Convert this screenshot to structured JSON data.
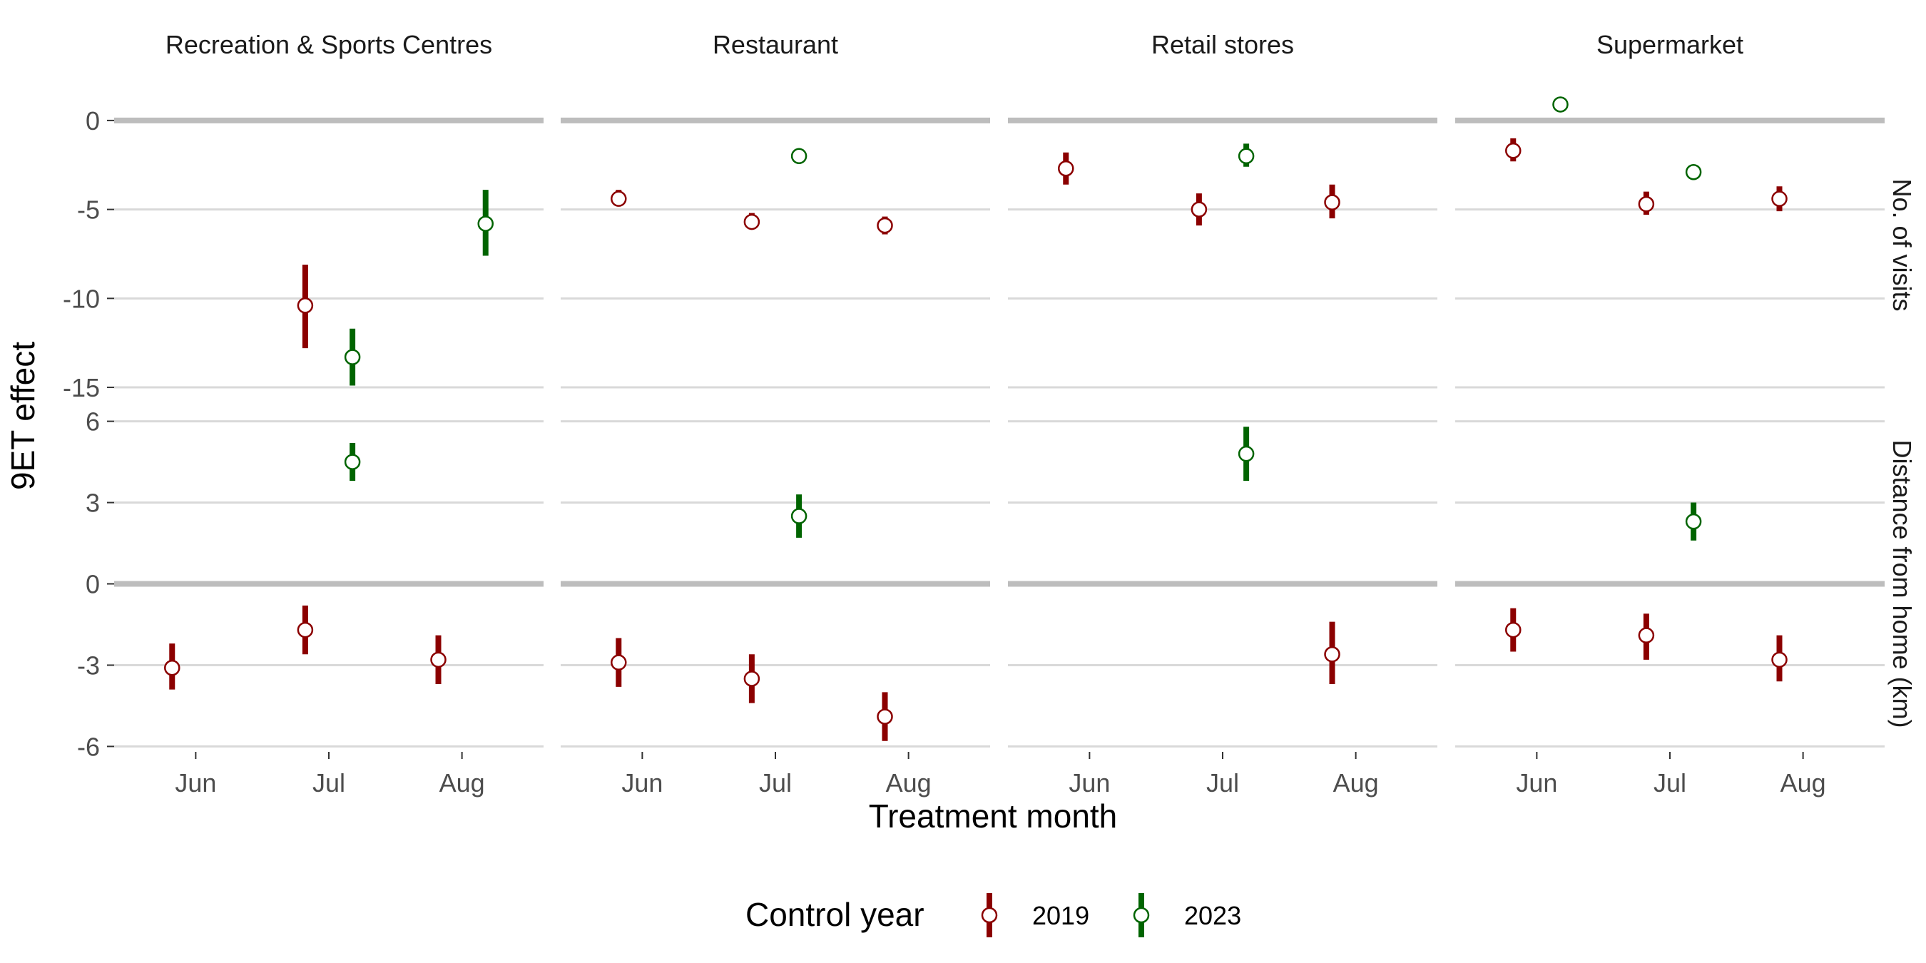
{
  "chart_data": {
    "type": "scatter",
    "xlabel": "Treatment month",
    "ylabel": "9ET effect",
    "x_categories": [
      "Jun",
      "Jul",
      "Aug"
    ],
    "facet_columns": [
      "Recreation & Sports Centres",
      "Restaurant",
      "Retail stores",
      "Supermarket"
    ],
    "facet_rows": [
      {
        "name": "No. of visits",
        "ylim": [
          -15.8,
          1.8
        ],
        "ticks": [
          0,
          -5,
          -10,
          -15
        ],
        "tick_labels": [
          "0",
          "-5",
          "-10",
          "-15"
        ]
      },
      {
        "name": "Distance from home (km)",
        "ylim": [
          -6.2,
          6.2
        ],
        "ticks": [
          6,
          3,
          0,
          -3,
          -6
        ],
        "tick_labels": [
          "6",
          "3",
          "0",
          "-3",
          "-6"
        ]
      }
    ],
    "legend": {
      "title": "Control year",
      "position": "bottom",
      "entries": [
        "2019",
        "2023"
      ]
    },
    "series_colors": {
      "2019": "#8b0000",
      "2023": "#006400"
    },
    "points": [
      {
        "row": 0,
        "col": 0,
        "year": "2019",
        "month": "Jul",
        "y": -10.4,
        "lo": -12.8,
        "hi": -8.1
      },
      {
        "row": 0,
        "col": 0,
        "year": "2023",
        "month": "Jul",
        "y": -13.3,
        "lo": -14.9,
        "hi": -11.7
      },
      {
        "row": 0,
        "col": 0,
        "year": "2023",
        "month": "Aug",
        "y": -5.8,
        "lo": -7.6,
        "hi": -3.9
      },
      {
        "row": 0,
        "col": 1,
        "year": "2019",
        "month": "Jun",
        "y": -4.4,
        "lo": -4.8,
        "hi": -3.9
      },
      {
        "row": 0,
        "col": 1,
        "year": "2019",
        "month": "Jul",
        "y": -5.7,
        "lo": -6.1,
        "hi": -5.2
      },
      {
        "row": 0,
        "col": 1,
        "year": "2023",
        "month": "Jul",
        "y": -2.0,
        "lo": -2.2,
        "hi": -1.8
      },
      {
        "row": 0,
        "col": 1,
        "year": "2019",
        "month": "Aug",
        "y": -5.9,
        "lo": -6.4,
        "hi": -5.4
      },
      {
        "row": 0,
        "col": 2,
        "year": "2019",
        "month": "Jun",
        "y": -2.7,
        "lo": -3.6,
        "hi": -1.8
      },
      {
        "row": 0,
        "col": 2,
        "year": "2019",
        "month": "Jul",
        "y": -5.0,
        "lo": -5.9,
        "hi": -4.1
      },
      {
        "row": 0,
        "col": 2,
        "year": "2023",
        "month": "Jul",
        "y": -2.0,
        "lo": -2.6,
        "hi": -1.3
      },
      {
        "row": 0,
        "col": 2,
        "year": "2019",
        "month": "Aug",
        "y": -4.6,
        "lo": -5.5,
        "hi": -3.6
      },
      {
        "row": 0,
        "col": 3,
        "year": "2019",
        "month": "Jun",
        "y": -1.7,
        "lo": -2.3,
        "hi": -1.0
      },
      {
        "row": 0,
        "col": 3,
        "year": "2023",
        "month": "Jun",
        "y": 0.9,
        "lo": 0.5,
        "hi": 1.3
      },
      {
        "row": 0,
        "col": 3,
        "year": "2019",
        "month": "Jul",
        "y": -4.7,
        "lo": -5.3,
        "hi": -4.0
      },
      {
        "row": 0,
        "col": 3,
        "year": "2023",
        "month": "Jul",
        "y": -2.9,
        "lo": -3.3,
        "hi": -2.5
      },
      {
        "row": 0,
        "col": 3,
        "year": "2019",
        "month": "Aug",
        "y": -4.4,
        "lo": -5.1,
        "hi": -3.7
      },
      {
        "row": 1,
        "col": 0,
        "year": "2019",
        "month": "Jun",
        "y": -3.1,
        "lo": -3.9,
        "hi": -2.2
      },
      {
        "row": 1,
        "col": 0,
        "year": "2019",
        "month": "Jul",
        "y": -1.7,
        "lo": -2.6,
        "hi": -0.8
      },
      {
        "row": 1,
        "col": 0,
        "year": "2023",
        "month": "Jul",
        "y": 4.5,
        "lo": 3.8,
        "hi": 5.2
      },
      {
        "row": 1,
        "col": 0,
        "year": "2019",
        "month": "Aug",
        "y": -2.8,
        "lo": -3.7,
        "hi": -1.9
      },
      {
        "row": 1,
        "col": 1,
        "year": "2019",
        "month": "Jun",
        "y": -2.9,
        "lo": -3.8,
        "hi": -2.0
      },
      {
        "row": 1,
        "col": 1,
        "year": "2019",
        "month": "Jul",
        "y": -3.5,
        "lo": -4.4,
        "hi": -2.6
      },
      {
        "row": 1,
        "col": 1,
        "year": "2023",
        "month": "Jul",
        "y": 2.5,
        "lo": 1.7,
        "hi": 3.3
      },
      {
        "row": 1,
        "col": 1,
        "year": "2019",
        "month": "Aug",
        "y": -4.9,
        "lo": -5.8,
        "hi": -4.0
      },
      {
        "row": 1,
        "col": 2,
        "year": "2023",
        "month": "Jul",
        "y": 4.8,
        "lo": 3.8,
        "hi": 5.8
      },
      {
        "row": 1,
        "col": 2,
        "year": "2019",
        "month": "Aug",
        "y": -2.6,
        "lo": -3.7,
        "hi": -1.4
      },
      {
        "row": 1,
        "col": 3,
        "year": "2019",
        "month": "Jun",
        "y": -1.7,
        "lo": -2.5,
        "hi": -0.9
      },
      {
        "row": 1,
        "col": 3,
        "year": "2019",
        "month": "Jul",
        "y": -1.9,
        "lo": -2.8,
        "hi": -1.1
      },
      {
        "row": 1,
        "col": 3,
        "year": "2023",
        "month": "Jul",
        "y": 2.3,
        "lo": 1.6,
        "hi": 3.0
      },
      {
        "row": 1,
        "col": 3,
        "year": "2019",
        "month": "Aug",
        "y": -2.8,
        "lo": -3.6,
        "hi": -1.9
      }
    ]
  }
}
